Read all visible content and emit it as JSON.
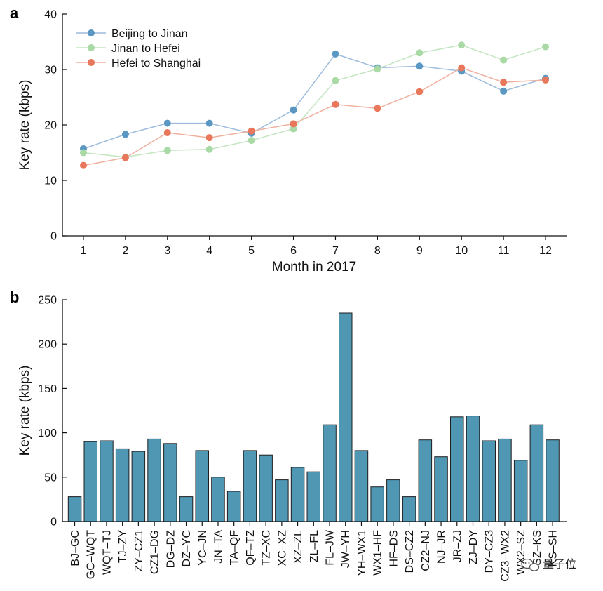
{
  "watermark": {
    "text": "量子位"
  },
  "chart_data": [
    {
      "panel": "a",
      "type": "line",
      "xlabel": "Month in 2017",
      "ylabel": "Key rate (kbps)",
      "x": [
        1,
        2,
        3,
        4,
        5,
        6,
        7,
        8,
        9,
        10,
        11,
        12
      ],
      "xlim": [
        0.5,
        12.5
      ],
      "ylim": [
        0,
        40
      ],
      "yticks": [
        0,
        10,
        20,
        30,
        40
      ],
      "grid": false,
      "legend": "top-left",
      "series": [
        {
          "name": "Beijing to Jinan",
          "color": "#5b97c3",
          "line_color": "#9dbcdc",
          "values": [
            15.7,
            18.3,
            20.3,
            20.3,
            18.5,
            22.7,
            32.8,
            30.3,
            30.6,
            29.7,
            26.1,
            28.4
          ]
        },
        {
          "name": "Jinan to Hefei",
          "color": "#a9d9a5",
          "line_color": "#c4e5c1",
          "values": [
            15.0,
            14.2,
            15.4,
            15.6,
            17.2,
            19.3,
            28.0,
            30.1,
            33.0,
            34.4,
            31.7,
            34.1
          ]
        },
        {
          "name": "Hefei to Shanghai",
          "color": "#e8775b",
          "line_color": "#f0b09f",
          "values": [
            12.7,
            14.1,
            18.6,
            17.7,
            18.9,
            20.2,
            23.7,
            23.0,
            26.0,
            30.3,
            27.7,
            28.1
          ]
        }
      ]
    },
    {
      "panel": "b",
      "type": "bar",
      "ylabel": "Key rate (kbps)",
      "xlabel": "",
      "ylim": [
        0,
        250
      ],
      "yticks": [
        0,
        50,
        100,
        150,
        200,
        250
      ],
      "bar_color": "#4f97b3",
      "categories": [
        "BJ–GC",
        "GC–WQT",
        "WQT–TJ",
        "TJ–ZY",
        "ZY–CZ1",
        "CZ1–DG",
        "DG–DZ",
        "DZ–YC",
        "YC–JN",
        "JN–TA",
        "TA–QF",
        "QF–TZ",
        "TZ–XC",
        "XC–XZ",
        "XZ–ZL",
        "ZL–FL",
        "FL–JW",
        "JW–YH",
        "YH–WX1",
        "WX1–HF",
        "HF–DS",
        "DS–CZ2",
        "CZ2–NJ",
        "NJ–JR",
        "JR–ZJ",
        "ZJ–DY",
        "DY–CZ3",
        "CZ3–WX2",
        "WX2–SZ",
        "SZ–KS",
        "KS–SH"
      ],
      "values": [
        28,
        90,
        91,
        82,
        79,
        93,
        88,
        28,
        80,
        50,
        34,
        80,
        75,
        47,
        61,
        56,
        109,
        235,
        80,
        39,
        47,
        28,
        92,
        73,
        118,
        119,
        91,
        93,
        69,
        109,
        92
      ]
    }
  ]
}
